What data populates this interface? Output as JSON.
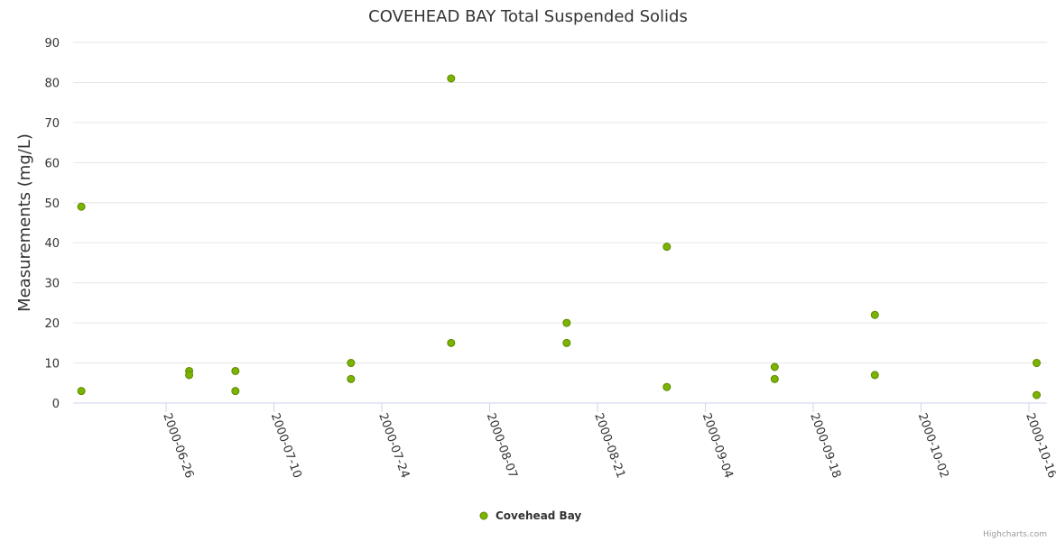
{
  "chart_data": {
    "type": "scatter",
    "title": "COVEHEAD BAY Total Suspended Solids",
    "xlabel": "",
    "ylabel": "Measurements (mg/L)",
    "ylim": [
      0,
      90
    ],
    "xlim": [
      "2000-06-14",
      "2000-10-18"
    ],
    "yticks": [
      "0",
      "10",
      "20",
      "30",
      "40",
      "50",
      "60",
      "70",
      "80",
      "90"
    ],
    "xticks": [
      "2000-06-26",
      "2000-07-10",
      "2000-07-24",
      "2000-08-07",
      "2000-08-21",
      "2000-09-04",
      "2000-09-18",
      "2000-10-02",
      "2000-10-16"
    ],
    "grid": true,
    "legend_position": "bottom-center",
    "series": [
      {
        "name": "Covehead Bay",
        "color": "#7cb300",
        "points": [
          {
            "x": "2000-06-15",
            "y": 49
          },
          {
            "x": "2000-06-15",
            "y": 3
          },
          {
            "x": "2000-06-29",
            "y": 8
          },
          {
            "x": "2000-06-29",
            "y": 7
          },
          {
            "x": "2000-07-05",
            "y": 8
          },
          {
            "x": "2000-07-05",
            "y": 3
          },
          {
            "x": "2000-07-20",
            "y": 10
          },
          {
            "x": "2000-07-20",
            "y": 6
          },
          {
            "x": "2000-08-02",
            "y": 81
          },
          {
            "x": "2000-08-02",
            "y": 15
          },
          {
            "x": "2000-08-17",
            "y": 20
          },
          {
            "x": "2000-08-17",
            "y": 15
          },
          {
            "x": "2000-08-30",
            "y": 39
          },
          {
            "x": "2000-08-30",
            "y": 4
          },
          {
            "x": "2000-09-13",
            "y": 9
          },
          {
            "x": "2000-09-13",
            "y": 6
          },
          {
            "x": "2000-09-26",
            "y": 22
          },
          {
            "x": "2000-09-26",
            "y": 7
          },
          {
            "x": "2000-10-17",
            "y": 10
          },
          {
            "x": "2000-10-17",
            "y": 2
          }
        ]
      }
    ]
  },
  "credits": "Highcharts.com"
}
